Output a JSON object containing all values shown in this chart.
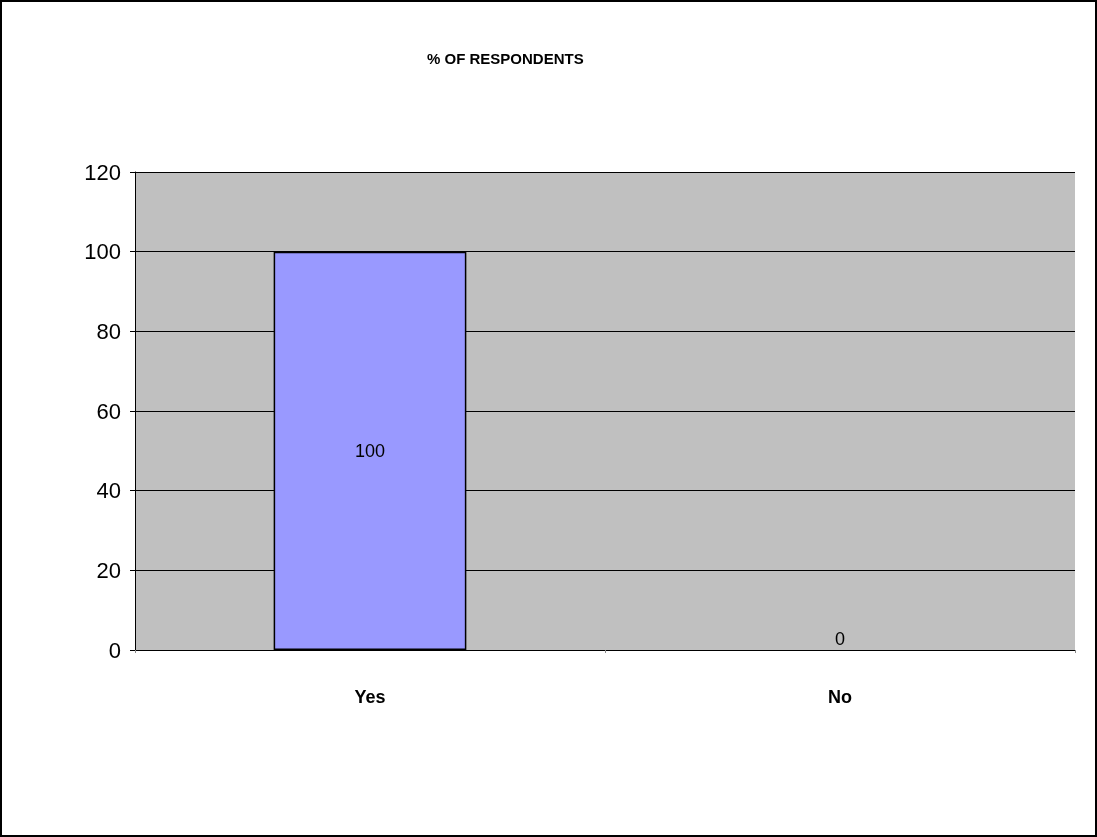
{
  "chart_data": {
    "type": "bar",
    "title": "% OF RESPONDENTS",
    "categories": [
      "Yes",
      "No"
    ],
    "series": [
      {
        "color": "#9999ff",
        "values": [
          100,
          0
        ]
      }
    ],
    "ylim": [
      0,
      120
    ],
    "yticks": [
      0,
      20,
      40,
      60,
      80,
      100,
      120
    ],
    "grid": "y",
    "data_labels": true
  }
}
